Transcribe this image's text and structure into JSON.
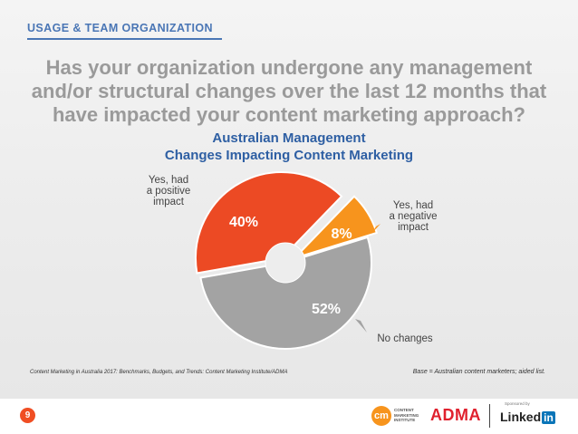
{
  "header": {
    "section_label": "USAGE & TEAM ORGANIZATION",
    "question": "Has your organization undergone any management and/or structural changes over the last 12 months that have impacted your content marketing approach?"
  },
  "chart_data": {
    "type": "pie",
    "title_line1": "Australian Management",
    "title_line2": "Changes Impacting Content Marketing",
    "slices": [
      {
        "label_lines": [
          "Yes, had",
          "a positive",
          "impact"
        ],
        "value": 40,
        "value_label": "40%",
        "color": "#ec4a24"
      },
      {
        "label_lines": [
          "Yes, had",
          "a negative",
          "impact"
        ],
        "value": 8,
        "value_label": "8%",
        "color": "#f7941d"
      },
      {
        "label_lines": [
          "No changes"
        ],
        "value": 52,
        "value_label": "52%",
        "color": "#a3a3a3"
      }
    ],
    "donut_hole": true
  },
  "footer": {
    "source": "Content Marketing in Australia 2017: Benchmarks, Budgets, and Trends: Content Marketing Institute/ADMA",
    "base_note": "Base = Australian content marketers; aided list.",
    "page_number": "9",
    "logo_cmi_mark": "cm",
    "logo_cmi_text": "CONTENT MARKETING INSTITUTE",
    "logo_adma": "ADMA",
    "sponsor_label": "Sponsored by",
    "logo_linkedin_word": "Linked",
    "logo_linkedin_in": "in"
  }
}
